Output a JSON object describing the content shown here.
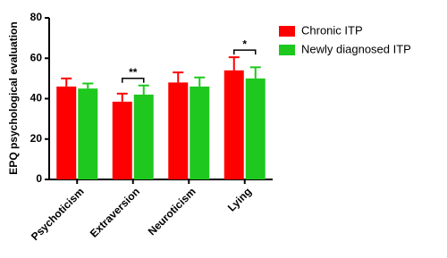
{
  "chart_data": {
    "type": "bar",
    "y_label": "EPQ psychological evaluation",
    "categories": [
      "Psychoticism",
      "Extraversion",
      "Neuroticism",
      "Lying"
    ],
    "series": [
      {
        "name": "Chronic ITP",
        "color": "#ff0000",
        "values": [
          46,
          38.5,
          48,
          54
        ],
        "errors": [
          4,
          4,
          5,
          6.5
        ]
      },
      {
        "name": "Newly diagnosed ITP",
        "color": "#1ec81e",
        "values": [
          45,
          42,
          46,
          50
        ],
        "errors": [
          2.5,
          4.5,
          4.5,
          5.5
        ]
      }
    ],
    "annotations": [
      {
        "label": "**",
        "category": "Extraversion"
      },
      {
        "label": "*",
        "category": "Lying"
      }
    ],
    "ylim": [
      0,
      80
    ],
    "yticks": [
      0,
      20,
      40,
      60,
      80
    ],
    "legend": "top-right"
  }
}
